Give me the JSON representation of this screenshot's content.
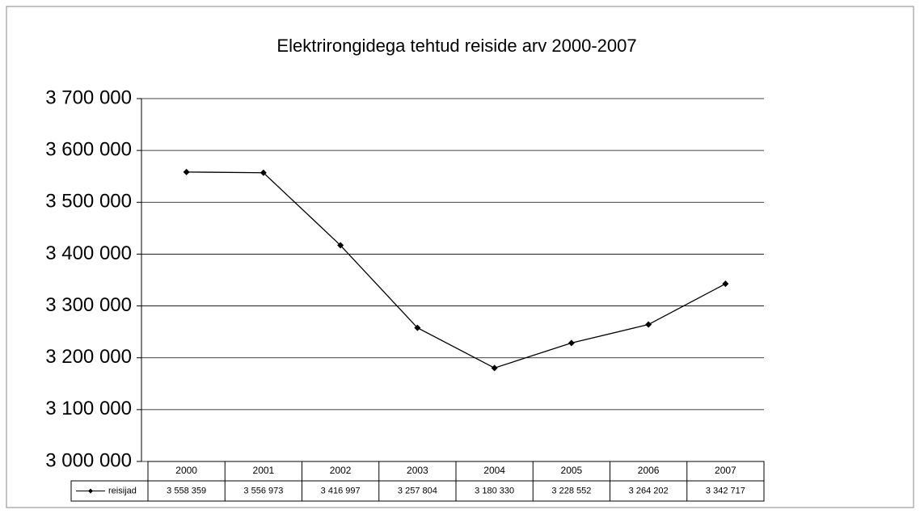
{
  "chart_data": {
    "type": "line",
    "title": "Elektrirongidega tehtud reiside arv 2000-2007",
    "categories": [
      "2000",
      "2001",
      "2002",
      "2003",
      "2004",
      "2005",
      "2006",
      "2007"
    ],
    "series": [
      {
        "name": "reisijad",
        "color": "#000000",
        "values": [
          3558359,
          3556973,
          3416997,
          3257804,
          3180330,
          3228552,
          3264202,
          3342717
        ],
        "value_labels": [
          "3 558 359",
          "3 556 973",
          "3 416 997",
          "3 257 804",
          "3 180 330",
          "3 228 552",
          "3 264 202",
          "3 342 717"
        ]
      }
    ],
    "ylim": [
      3000000,
      3700000
    ],
    "yticks": [
      {
        "value": 3000000,
        "label": "3 000 000"
      },
      {
        "value": 3100000,
        "label": "3 100 000"
      },
      {
        "value": 3200000,
        "label": "3 200 000"
      },
      {
        "value": 3300000,
        "label": "3 300 000"
      },
      {
        "value": 3400000,
        "label": "3 400 000"
      },
      {
        "value": 3500000,
        "label": "3 500 000"
      },
      {
        "value": 3600000,
        "label": "3 600 000"
      },
      {
        "value": 3700000,
        "label": "3 700 000"
      }
    ],
    "grid": true
  }
}
